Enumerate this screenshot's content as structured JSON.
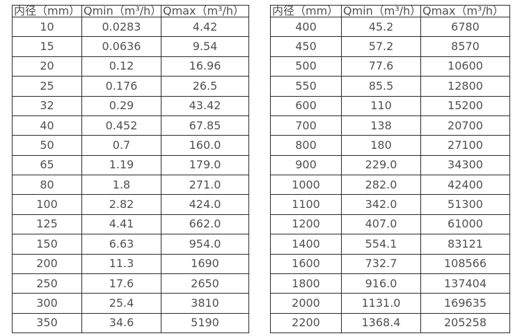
{
  "tables": [
    {
      "name": "small-diameter-flow-ranges",
      "headers": [
        "内径（mm）",
        "Qmin（m³/h）",
        "Qmax（m³/h）"
      ],
      "rows": [
        [
          "10",
          "0.0283",
          "4.42"
        ],
        [
          "15",
          "0.0636",
          "9.54"
        ],
        [
          "20",
          "0.12",
          "16.96"
        ],
        [
          "25",
          "0.176",
          "26.5"
        ],
        [
          "32",
          "0.29",
          "43.42"
        ],
        [
          "40",
          "0.452",
          "67.85"
        ],
        [
          "50",
          "0.7",
          "160.0"
        ],
        [
          "65",
          "1.19",
          "179.0"
        ],
        [
          "80",
          "1.8",
          "271.0"
        ],
        [
          "100",
          "2.82",
          "424.0"
        ],
        [
          "125",
          "4.41",
          "662.0"
        ],
        [
          "150",
          "6.63",
          "954.0"
        ],
        [
          "200",
          "11.3",
          "1690"
        ],
        [
          "250",
          "17.6",
          "2650"
        ],
        [
          "300",
          "25.4",
          "3810"
        ],
        [
          "350",
          "34.6",
          "5190"
        ]
      ]
    },
    {
      "name": "large-diameter-flow-ranges",
      "headers": [
        "内径（mm）",
        "Qmin（m³/h）",
        "Qmax（m³/h）"
      ],
      "rows": [
        [
          "400",
          "45.2",
          "6780"
        ],
        [
          "450",
          "57.2",
          "8570"
        ],
        [
          "500",
          "77.6",
          "10600"
        ],
        [
          "550",
          "85.5",
          "12800"
        ],
        [
          "600",
          "110",
          "15200"
        ],
        [
          "700",
          "138",
          "20700"
        ],
        [
          "800",
          "180",
          "27100"
        ],
        [
          "900",
          "229.0",
          "34300"
        ],
        [
          "1000",
          "282.0",
          "42400"
        ],
        [
          "1100",
          "342.0",
          "51300"
        ],
        [
          "1200",
          "407.0",
          "61000"
        ],
        [
          "1400",
          "554.1",
          "83121"
        ],
        [
          "1600",
          "732.7",
          "108566"
        ],
        [
          "1800",
          "916.0",
          "137404"
        ],
        [
          "2000",
          "1131.0",
          "169635"
        ],
        [
          "2200",
          "1368.4",
          "205258"
        ]
      ]
    }
  ],
  "colors": {
    "border": "#262626",
    "text": "#4f4f4f",
    "background": "#ffffff"
  }
}
